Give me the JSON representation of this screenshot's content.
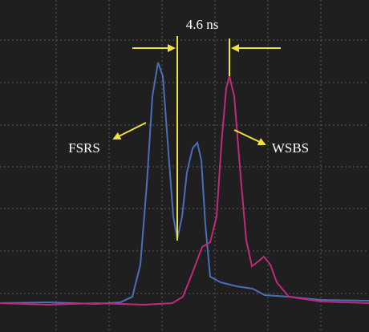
{
  "annotations": {
    "delay": "4.6 ns",
    "left_peak": "FSRS",
    "right_peak": "WSBS"
  }
}
